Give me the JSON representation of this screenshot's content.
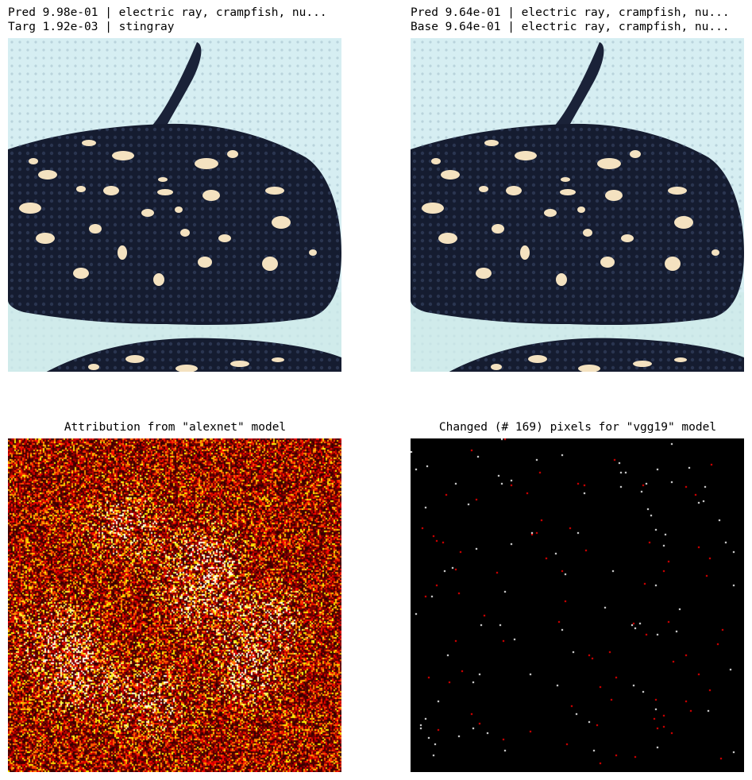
{
  "panels": {
    "top_left": {
      "title_line1": "Pred 9.98e-01 | electric ray, crampfish, nu...",
      "title_line2": "Targ 1.92e-03 | stingray",
      "image": "stingray-adversarial-image"
    },
    "top_right": {
      "title_line1": "Pred 9.64e-01 | electric ray, crampfish, nu...",
      "title_line2": "Base 9.64e-01 | electric ray, crampfish, nu...",
      "image": "stingray-base-image"
    },
    "bottom_left": {
      "title": "Attribution from \"alexnet\" model",
      "image": "attribution-heatmap",
      "colormap": "hot"
    },
    "bottom_right": {
      "title": "Changed (# 169) pixels for \"vgg19\" model",
      "image": "changed-pixels-map",
      "changed_pixel_count": 169,
      "colors": {
        "background": "#000000",
        "changed": "#ffffff",
        "accent": "#ff0000"
      }
    }
  },
  "colors": {
    "ray_body": "#141c30",
    "ray_spots": "#f4e2c0",
    "water": "#d9eef0"
  }
}
